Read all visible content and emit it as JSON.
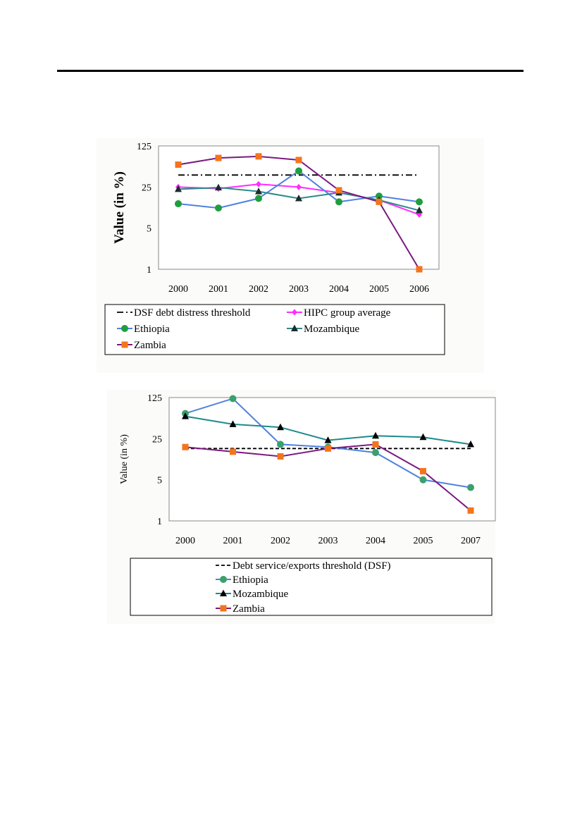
{
  "chart_data": [
    {
      "type": "line",
      "title": "",
      "xlabel": "",
      "ylabel": "Value (in %)",
      "y_scale": "log5",
      "ylim": [
        1,
        125
      ],
      "yticks": [
        "125",
        "25",
        "5",
        "1"
      ],
      "categories": [
        "2000",
        "2001",
        "2002",
        "2003",
        "2004",
        "2005",
        "2006"
      ],
      "grid": false,
      "legend": "bottom",
      "series": [
        {
          "name": "DSF debt distress threshold",
          "values": [
            40,
            40,
            40,
            40,
            40,
            40,
            40
          ],
          "color": "#000000",
          "marker": "none",
          "dash": "dashdot"
        },
        {
          "name": "HIPC group average",
          "values": [
            25,
            23.5,
            28,
            25,
            20,
            15,
            8.5
          ],
          "color": "#ff2cff",
          "marker": "diamond"
        },
        {
          "name": "Ethiopia",
          "values": [
            13,
            11,
            16,
            47,
            14,
            17.5,
            14
          ],
          "color": "#1f9e3e",
          "line_color": "#4f81e0",
          "marker": "circle"
        },
        {
          "name": "Mozambique",
          "values": [
            23,
            24.5,
            21,
            16,
            20,
            15,
            10
          ],
          "color": "#1d2c2c",
          "line_color": "#2b8a8a",
          "marker": "triangle"
        },
        {
          "name": "Zambia",
          "values": [
            60,
            78,
            83,
            72,
            22,
            14,
            1
          ],
          "color": "#f4741c",
          "line_color": "#7a1a80",
          "marker": "square"
        }
      ]
    },
    {
      "type": "line",
      "title": "",
      "xlabel": "",
      "ylabel": "Value (in %)",
      "y_scale": "log5",
      "ylim": [
        1,
        125
      ],
      "yticks": [
        "125",
        "25",
        "5",
        "1"
      ],
      "categories": [
        "2000",
        "2001",
        "2002",
        "2003",
        "2004",
        "2005",
        "2007"
      ],
      "grid": false,
      "legend": "bottom",
      "series": [
        {
          "name": "Debt service/exports threshold (DSF)",
          "values": [
            17,
            17,
            17,
            17,
            17,
            17,
            17
          ],
          "color": "#000000",
          "marker": "none",
          "dash": "dash"
        },
        {
          "name": "Ethiopia",
          "values": [
            67,
            120,
            20,
            18,
            14.5,
            5,
            3.7
          ],
          "color": "#3aa06e",
          "line_color": "#4f81e0",
          "marker": "circle"
        },
        {
          "name": "Mozambique",
          "values": [
            60,
            44,
            39,
            23.5,
            28,
            26.5,
            20
          ],
          "color": "#000000",
          "line_color": "#1f8a8a",
          "marker": "triangle"
        },
        {
          "name": "Zambia",
          "values": [
            18,
            15,
            12.5,
            17,
            20,
            7,
            1.5
          ],
          "color": "#f4741c",
          "line_color": "#7a1a80",
          "marker": "square"
        }
      ]
    }
  ]
}
